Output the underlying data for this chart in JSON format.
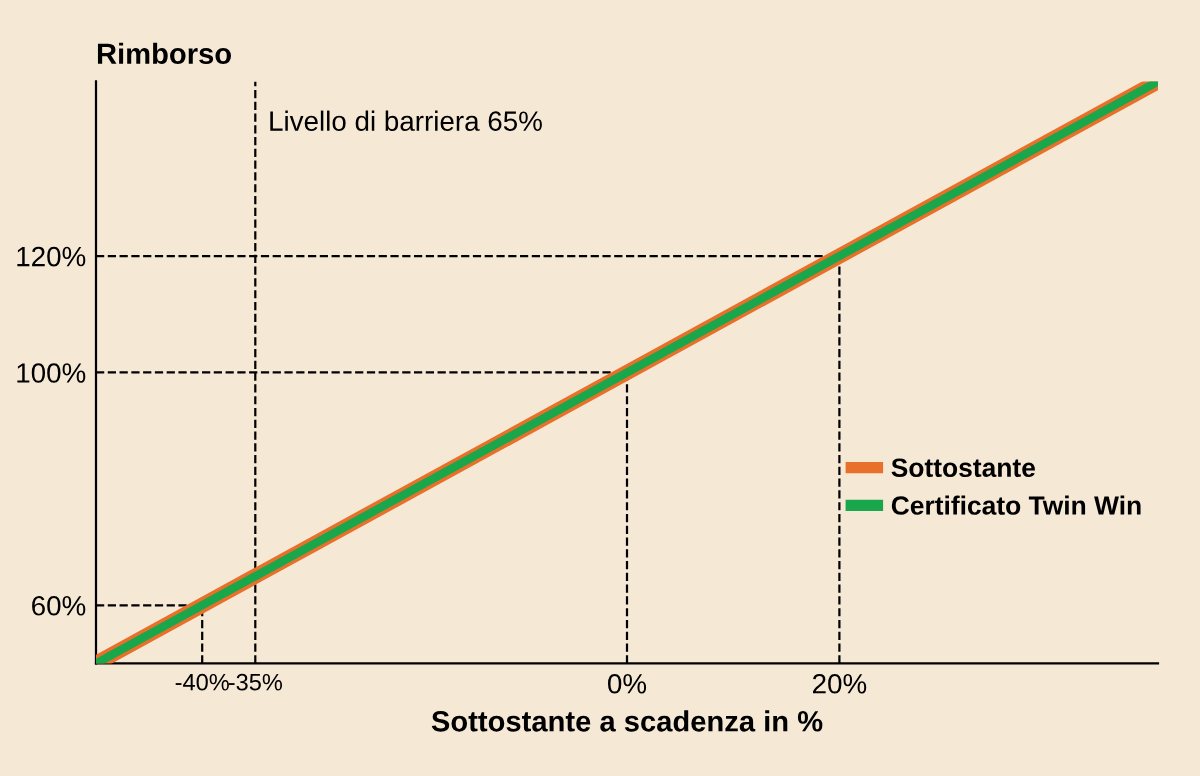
{
  "chart_data": {
    "type": "line",
    "ylabel": "Rimborso",
    "xlabel": "Sottostante a scadenza in %",
    "x": [
      -50,
      50
    ],
    "series": [
      {
        "name": "Sottostante",
        "color": "#e8702a",
        "values": [
          50,
          150
        ]
      },
      {
        "name": "Certificato Twin Win",
        "color": "#1aa64a",
        "values": [
          50,
          150
        ]
      }
    ],
    "xlim": [
      -50,
      50
    ],
    "ylim": [
      50,
      150
    ],
    "xticks": [
      {
        "value": -40,
        "label": "-40%"
      },
      {
        "value": -35,
        "label": "-35%"
      },
      {
        "value": 0,
        "label": "0%"
      },
      {
        "value": 20,
        "label": "20%"
      }
    ],
    "yticks": [
      {
        "value": 60,
        "label": "60%"
      },
      {
        "value": 100,
        "label": "100%"
      },
      {
        "value": 120,
        "label": "120%"
      }
    ],
    "ref_lines": [
      {
        "axis": "x",
        "value": -35,
        "label": "Livello di barriera 65%"
      },
      {
        "axis": "x",
        "value": -40
      },
      {
        "axis": "x",
        "value": 0
      },
      {
        "axis": "x",
        "value": 20
      },
      {
        "axis": "y",
        "value": 60
      },
      {
        "axis": "y",
        "value": 100
      },
      {
        "axis": "y",
        "value": 120
      }
    ],
    "legend": "right",
    "grid": false,
    "marker": "none",
    "line_style": "solid"
  }
}
